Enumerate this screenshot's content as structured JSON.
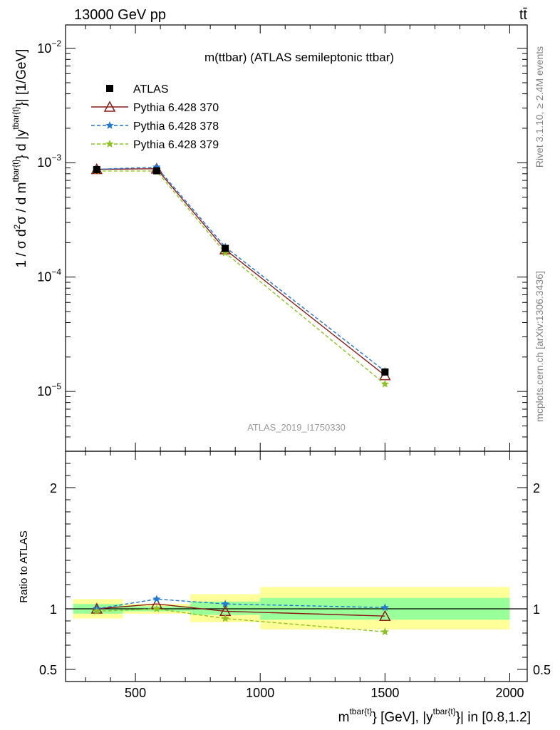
{
  "header": {
    "energy_label": "13000 GeV pp",
    "process_label": "tt̄"
  },
  "side_labels": {
    "rivet": "Rivet 3.1.10, ≥ 2.4M events",
    "mcplots": "mcplots.cern.ch [arXiv:1306.3436]"
  },
  "chart_data": [
    {
      "type": "line",
      "title": "m(ttbar) (ATLAS semileptonic ttbar)",
      "watermark": "ATLAS_2019_I1750330",
      "xlabel": "m^{tbar{t}} [GeV], |y^{tbar{t}}| in [0.8,1.2]",
      "ylabel": "1 / σ d²σ / d m^{tbar{t}} d |y^{tbar{t}}| [1/GeV]",
      "xlim": [
        220,
        2070
      ],
      "ylim": [
        3e-06,
        0.016
      ],
      "yscale": "log",
      "x_ticks": [
        500,
        1000,
        1500,
        2000
      ],
      "y_ticks": [
        {
          "value": 0.01,
          "base": "10",
          "exp": "−2"
        },
        {
          "value": 0.001,
          "base": "10",
          "exp": "−3"
        },
        {
          "value": 0.0001,
          "base": "10",
          "exp": "−4"
        },
        {
          "value": 1e-05,
          "base": "10",
          "exp": "−5"
        }
      ],
      "legend": {
        "position": "top-left"
      },
      "x": [
        345,
        585,
        860,
        1500
      ],
      "series": [
        {
          "name": "ATLAS",
          "marker": "square",
          "color": "#000000",
          "values": [
            0.00087,
            0.00085,
            0.000178,
            1.48e-05
          ]
        },
        {
          "name": "Pythia 6.428 370",
          "marker": "triangle",
          "color": "#8b1a1a",
          "dash": "",
          "values": [
            0.000875,
            0.000885,
            0.000174,
            1.38e-05
          ]
        },
        {
          "name": "Pythia 6.428 378",
          "marker": "star",
          "color": "#1f77d4",
          "dash": "5,3",
          "values": [
            0.000875,
            0.000915,
            0.000183,
            1.5e-05
          ]
        },
        {
          "name": "Pythia 6.428 379",
          "marker": "star",
          "color": "#8cc21f",
          "dash": "5,3",
          "values": [
            0.000845,
            0.000845,
            0.000163,
            1.16e-05
          ]
        }
      ]
    },
    {
      "type": "line",
      "ylabel": "Ratio to ATLAS",
      "xlim": [
        220,
        2070
      ],
      "ylim": [
        0.4,
        2.3
      ],
      "y_ticks": [
        0.5,
        1,
        2
      ],
      "bands": [
        {
          "x0": 250,
          "x1": 450,
          "yellow": [
            0.92,
            1.08
          ],
          "green": [
            0.96,
            1.04
          ]
        },
        {
          "x0": 450,
          "x1": 720,
          "yellow": [
            0.96,
            1.04
          ],
          "green": [
            0.98,
            1.02
          ]
        },
        {
          "x0": 720,
          "x1": 1000,
          "yellow": [
            0.89,
            1.12
          ],
          "green": [
            0.95,
            1.06
          ]
        },
        {
          "x0": 1000,
          "x1": 2000,
          "yellow": [
            0.83,
            1.18
          ],
          "green": [
            0.91,
            1.09
          ]
        }
      ],
      "x": [
        345,
        585,
        860,
        1500
      ],
      "series": [
        {
          "name": "Pythia 6.428 370",
          "marker": "triangle",
          "color": "#8b1a1a",
          "dash": "",
          "values": [
            1.0,
            1.04,
            0.98,
            0.94
          ]
        },
        {
          "name": "Pythia 6.428 378",
          "marker": "star",
          "color": "#1f77d4",
          "dash": "5,3",
          "values": [
            1.0,
            1.08,
            1.04,
            1.01
          ]
        },
        {
          "name": "Pythia 6.428 379",
          "marker": "star",
          "color": "#8cc21f",
          "dash": "5,3",
          "values": [
            0.98,
            1.0,
            0.92,
            0.81
          ]
        }
      ]
    }
  ]
}
